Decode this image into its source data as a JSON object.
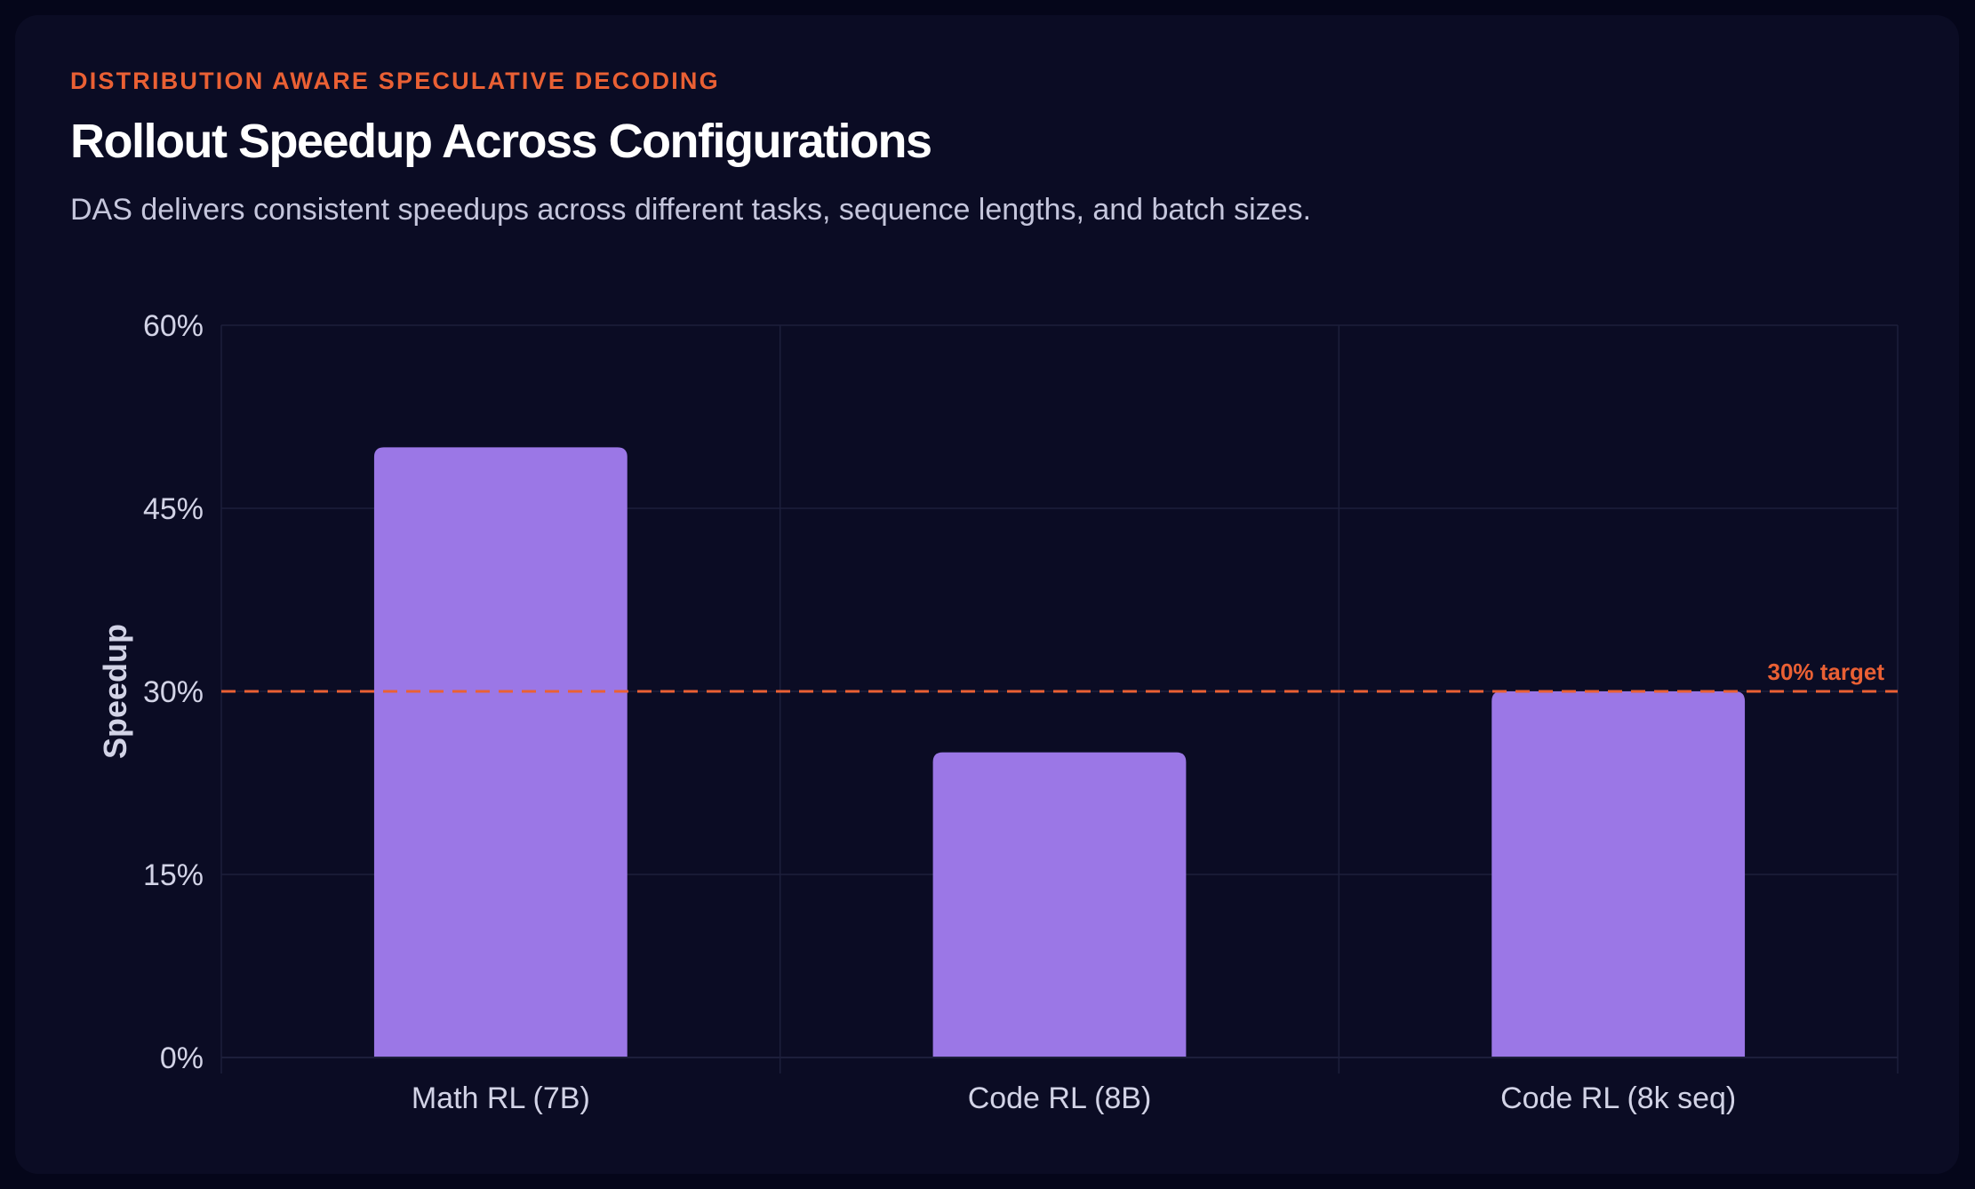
{
  "header": {
    "eyebrow": "DISTRIBUTION AWARE SPECULATIVE DECODING",
    "title": "Rollout Speedup Across Configurations",
    "subtitle": "DAS delivers consistent speedups across different tasks, sequence lengths, and batch sizes."
  },
  "colors": {
    "bar": "#9b77e6",
    "accent": "#ea6034",
    "grid": "#1d1f3b",
    "card": "#0b0c24",
    "background": "#05061a"
  },
  "chart_data": {
    "type": "bar",
    "title": "Rollout Speedup Across Configurations",
    "xlabel": "",
    "ylabel": "Speedup",
    "categories": [
      "Math RL (7B)",
      "Code RL (8B)",
      "Code RL (8k seq)"
    ],
    "values": [
      50,
      25,
      30
    ],
    "unit": "%",
    "ylim": [
      0,
      60
    ],
    "yticks": [
      0,
      15,
      30,
      45,
      60
    ],
    "ytick_labels": [
      "0%",
      "15%",
      "30%",
      "45%",
      "60%"
    ],
    "grid": true,
    "reference_line": {
      "value": 30,
      "label": "30% target",
      "style": "dashed"
    }
  }
}
